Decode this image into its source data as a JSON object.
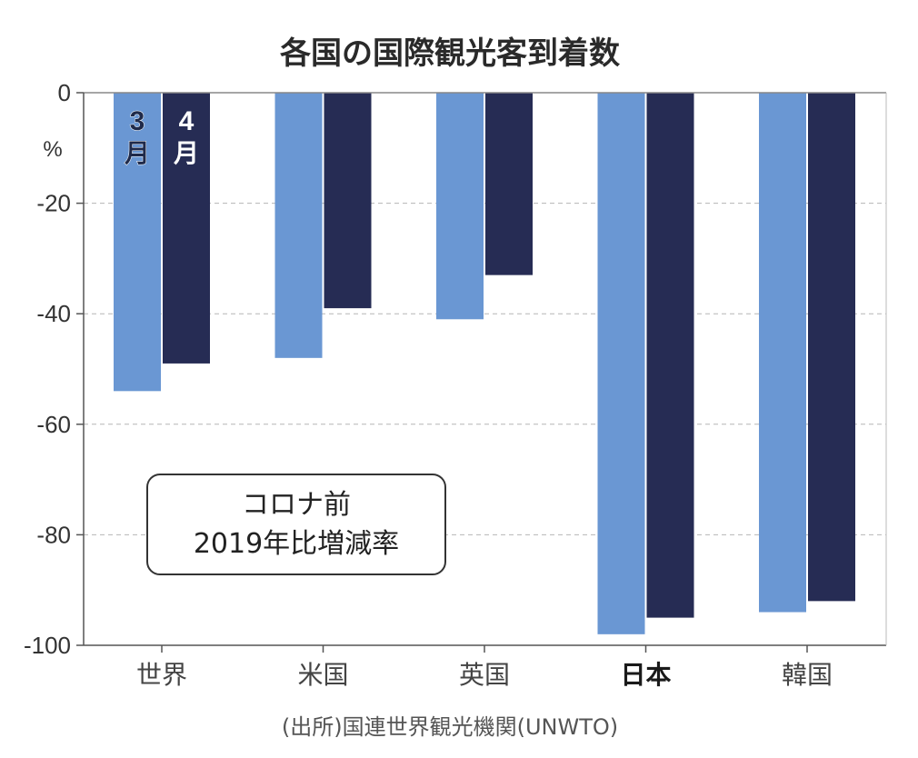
{
  "chart_data": {
    "type": "bar",
    "title": "各国の国際観光客到着数",
    "ylabel": "%",
    "ylim": [
      -100,
      0
    ],
    "yticks": [
      "0",
      "-20",
      "-40",
      "-60",
      "-80",
      "-100"
    ],
    "categories": [
      "世界",
      "米国",
      "英国",
      "日本",
      "韓国"
    ],
    "emphasized_category": "日本",
    "series": [
      {
        "name": "3月",
        "values": [
          -54,
          -48,
          -41,
          -98,
          -94
        ],
        "color": "#6a97d3"
      },
      {
        "name": "4月",
        "values": [
          -49,
          -39,
          -33,
          -95,
          -92
        ],
        "color": "#262c54"
      }
    ],
    "legend": {
      "placement": "inside-first-bars",
      "digits": [
        "3",
        "4"
      ],
      "unit": "月"
    },
    "grid": "dashed-horizontal",
    "annotation": {
      "line1": "コロナ前",
      "line2": "2019年比増減率"
    },
    "source": "(出所)国連世界観光機関(UNWTO)"
  }
}
